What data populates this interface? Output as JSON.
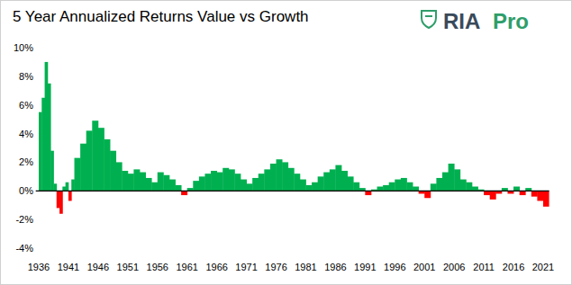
{
  "chart_data": {
    "type": "bar",
    "title": "5 Year Annualized Returns Value vs Growth",
    "annotations": [
      "RIA",
      "Pro"
    ],
    "x": [
      1936.0,
      1936.5,
      1937.0,
      1937.5,
      1938.0,
      1938.5,
      1939.0,
      1939.5,
      1940.0,
      1940.5,
      1941.0,
      1941.5,
      1942,
      1943,
      1944,
      1945,
      1946,
      1947,
      1948,
      1949,
      1950,
      1951,
      1952,
      1953,
      1954,
      1955,
      1956,
      1957,
      1958,
      1959,
      1960,
      1961,
      1962,
      1963,
      1964,
      1965,
      1966,
      1967,
      1968,
      1969,
      1970,
      1971,
      1972,
      1973,
      1974,
      1975,
      1976,
      1977,
      1978,
      1979,
      1980,
      1981,
      1982,
      1983,
      1984,
      1985,
      1986,
      1987,
      1988,
      1989,
      1990,
      1991,
      1992,
      1993,
      1994,
      1995,
      1996,
      1997,
      1998,
      1999,
      2000,
      2001,
      2002,
      2003,
      2004,
      2005,
      2006,
      2007,
      2008,
      2009,
      2010,
      2011,
      2012,
      2013,
      2014,
      2015,
      2016,
      2017,
      2018,
      2019,
      2020,
      2021
    ],
    "values": [
      5.5,
      6.5,
      9.0,
      7.5,
      2.8,
      0.5,
      -1.2,
      -1.6,
      0.3,
      0.6,
      -0.7,
      0.8,
      2.3,
      3.3,
      4.2,
      4.9,
      4.4,
      3.6,
      2.8,
      2.0,
      1.4,
      1.2,
      1.5,
      1.3,
      0.9,
      0.6,
      1.3,
      1.1,
      0.8,
      0.4,
      -0.3,
      0.2,
      0.7,
      1.0,
      1.2,
      1.4,
      1.3,
      1.6,
      1.5,
      1.2,
      0.8,
      0.5,
      0.9,
      1.2,
      1.5,
      1.9,
      2.2,
      2.0,
      1.6,
      1.2,
      0.8,
      0.4,
      0.6,
      1.0,
      1.3,
      1.5,
      1.8,
      1.4,
      1.0,
      0.6,
      0.2,
      -0.3,
      0.1,
      0.3,
      0.4,
      0.6,
      0.8,
      0.9,
      0.6,
      0.3,
      -0.2,
      -0.5,
      0.5,
      0.9,
      1.3,
      1.9,
      1.5,
      0.8,
      0.6,
      0.3,
      0.1,
      -0.3,
      -0.6,
      -0.2,
      0.2,
      -0.2,
      0.3,
      -0.3,
      0.2,
      -0.4,
      -0.7,
      -1.1
    ],
    "colors": [
      "#00b050",
      "#00b050",
      "#00b050",
      "#00b050",
      "#00b050",
      "#00b050",
      "#ff0000",
      "#ff0000",
      "#00b050",
      "#00b050",
      "#ff0000",
      "#00b050",
      "#00b050",
      "#00b050",
      "#00b050",
      "#00b050",
      "#00b050",
      "#00b050",
      "#00b050",
      "#00b050",
      "#00b050",
      "#00b050",
      "#00b050",
      "#00b050",
      "#00b050",
      "#00b050",
      "#00b050",
      "#00b050",
      "#00b050",
      "#00b050",
      "#ff0000",
      "#00b050",
      "#00b050",
      "#00b050",
      "#00b050",
      "#00b050",
      "#00b050",
      "#00b050",
      "#00b050",
      "#00b050",
      "#00b050",
      "#00b050",
      "#00b050",
      "#00b050",
      "#00b050",
      "#00b050",
      "#00b050",
      "#00b050",
      "#00b050",
      "#00b050",
      "#00b050",
      "#00b050",
      "#00b050",
      "#00b050",
      "#00b050",
      "#00b050",
      "#00b050",
      "#00b050",
      "#00b050",
      "#00b050",
      "#00b050",
      "#ff0000",
      "#00b050",
      "#00b050",
      "#00b050",
      "#00b050",
      "#00b050",
      "#00b050",
      "#00b050",
      "#00b050",
      "#ff0000",
      "#ff0000",
      "#00b050",
      "#00b050",
      "#00b050",
      "#00b050",
      "#00b050",
      "#00b050",
      "#00b050",
      "#00b050",
      "#00b050",
      "#ff0000",
      "#ff0000",
      "#ff0000",
      "#00b050",
      "#ff0000",
      "#00b050",
      "#ff0000",
      "#00b050",
      "#ff0000",
      "#ff0000",
      "#ff0000"
    ],
    "xlim": [
      1935.5,
      2022
    ],
    "xticks": [
      1936,
      1941,
      1946,
      1951,
      1956,
      1961,
      1966,
      1971,
      1976,
      1981,
      1986,
      1991,
      1996,
      2001,
      2006,
      2011,
      2016,
      2021
    ],
    "ylim": [
      -4,
      10
    ],
    "yticks": [
      {
        "value": -4,
        "label": "-4%"
      },
      {
        "value": -2,
        "label": "-2%"
      },
      {
        "value": 0,
        "label": "0%"
      },
      {
        "value": 2,
        "label": "2%"
      },
      {
        "value": 4,
        "label": "4%"
      },
      {
        "value": 6,
        "label": "6%"
      },
      {
        "value": 8,
        "label": "8%"
      },
      {
        "value": 10,
        "label": "10%"
      }
    ],
    "grid": false
  }
}
